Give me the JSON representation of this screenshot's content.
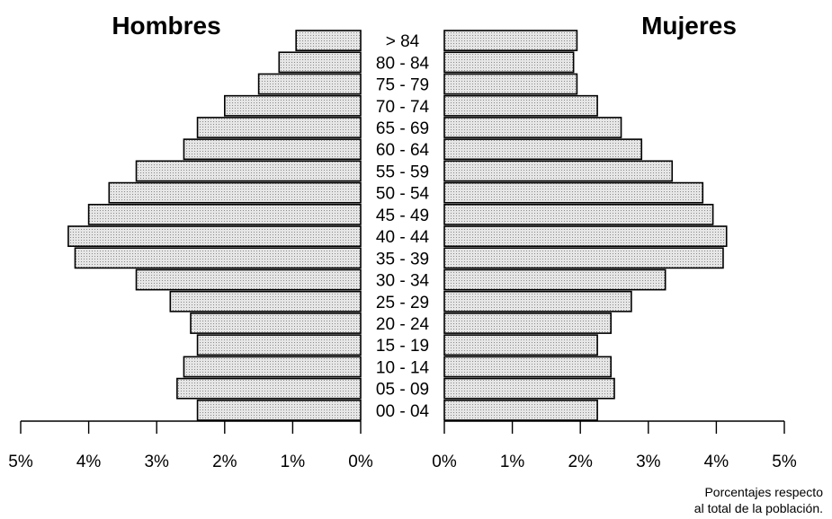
{
  "chart_data": {
    "type": "bar",
    "orientation": "horizontal",
    "subtype": "population-pyramid",
    "categories": [
      "00 - 04",
      "05 - 09",
      "10 - 14",
      "15 - 19",
      "20 - 24",
      "25 - 29",
      "30 - 34",
      "35 - 39",
      "40 - 44",
      "45 - 49",
      "50 - 54",
      "55 - 59",
      "60 - 64",
      "65 - 69",
      "70 - 74",
      "75 - 79",
      "80 - 84",
      "> 84"
    ],
    "series": [
      {
        "name": "Hombres",
        "side": "left",
        "values": [
          2.4,
          2.7,
          2.6,
          2.4,
          2.5,
          2.8,
          3.3,
          4.2,
          4.3,
          4.0,
          3.7,
          3.3,
          2.6,
          2.4,
          2.0,
          1.5,
          1.2,
          0.95
        ]
      },
      {
        "name": "Mujeres",
        "side": "right",
        "values": [
          2.25,
          2.5,
          2.45,
          2.25,
          2.45,
          2.75,
          3.25,
          4.1,
          4.15,
          3.95,
          3.8,
          3.35,
          2.9,
          2.6,
          2.25,
          1.95,
          1.9,
          1.95
        ]
      }
    ],
    "xlim": [
      0,
      5
    ],
    "x_ticks": [
      "0%",
      "1%",
      "2%",
      "3%",
      "4%",
      "5%"
    ],
    "grid": false,
    "note_lines": [
      "Porcentajes respecto",
      "al total de la población."
    ]
  }
}
